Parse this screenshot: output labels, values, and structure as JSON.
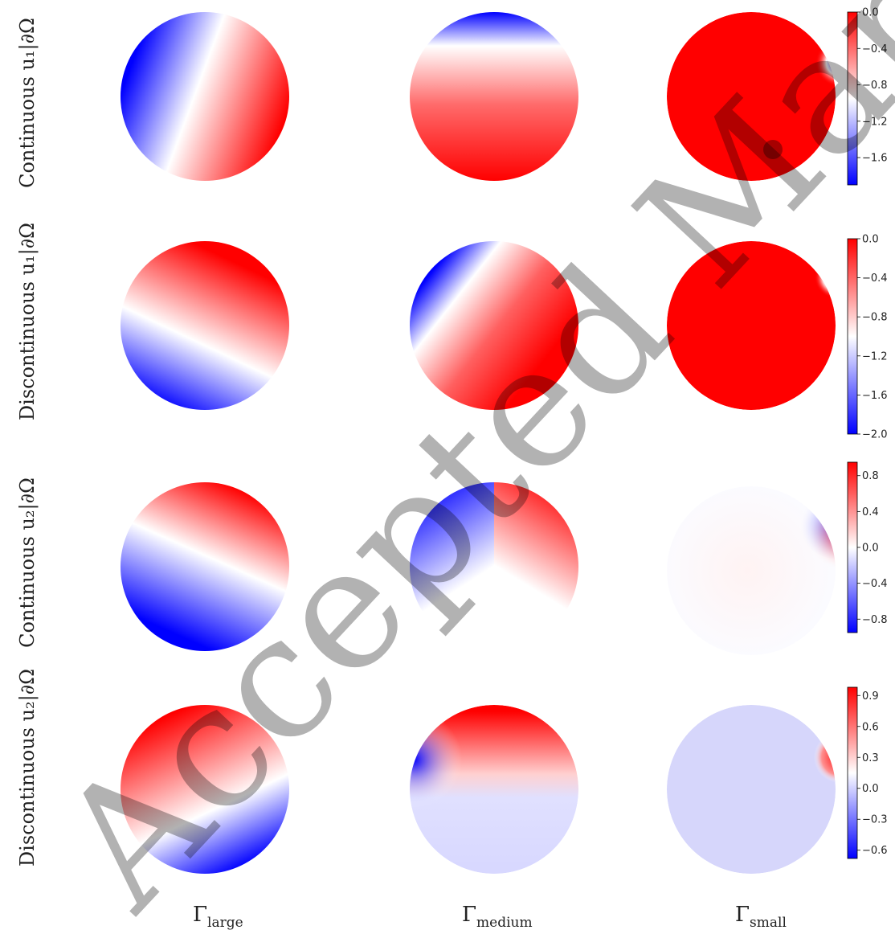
{
  "chart_data": {
    "type": "heatmap",
    "description_free": true,
    "columns": [
      {
        "base": "Γ",
        "sub": "large"
      },
      {
        "base": "Γ",
        "sub": "medium"
      },
      {
        "base": "Γ",
        "sub": "small"
      }
    ],
    "rows": [
      {
        "label": "Continuous u₁|∂Ω",
        "colorbar": {
          "ticks": [
            "0.0",
            "−0.4",
            "−0.8",
            "−1.2",
            "−1.6"
          ],
          "tick_values": [
            0.0,
            -0.4,
            -0.8,
            -1.2,
            -1.6
          ],
          "range": [
            -1.9,
            0.0
          ]
        },
        "panels": [
          {
            "kind": "angle",
            "angle_deg": 30,
            "blue_side": "left"
          },
          {
            "kind": "top_cap"
          },
          {
            "kind": "saturated_red",
            "blob": "top_right",
            "dark_dot": true
          }
        ]
      },
      {
        "label": "Discontinuous u₁|∂Ω",
        "colorbar": {
          "ticks": [
            "0.0",
            "−0.4",
            "−0.8",
            "−1.2",
            "−1.6",
            "−2.0"
          ],
          "tick_values": [
            0.0,
            -0.4,
            -0.8,
            -1.2,
            -1.6,
            -2.0
          ],
          "range": [
            -2.0,
            0.0
          ]
        },
        "panels": [
          {
            "kind": "fan_from_point",
            "point": "lower_right"
          },
          {
            "kind": "fan_from_point",
            "point": "left"
          },
          {
            "kind": "saturated_red",
            "blob": "top_right",
            "dark_dot": false
          }
        ]
      },
      {
        "label": "Continuous u₂|∂Ω",
        "colorbar": {
          "ticks": [
            "0.8",
            "0.4",
            "0.0",
            "−0.4",
            "−0.8"
          ],
          "tick_values": [
            0.8,
            0.4,
            0.0,
            -0.4,
            -0.8
          ],
          "range": [
            -0.95,
            0.95
          ]
        },
        "panels": [
          {
            "kind": "linear",
            "red_side": "top"
          },
          {
            "kind": "split_top",
            "left": "blue",
            "right": "red"
          },
          {
            "kind": "faint_pair",
            "blobs": "right"
          }
        ]
      },
      {
        "label": "Discontinuous u₂|∂Ω",
        "colorbar": {
          "ticks": [
            "0.9",
            "0.6",
            "0.3",
            "0.0",
            "−0.3",
            "−0.6"
          ],
          "tick_values": [
            0.9,
            0.6,
            0.3,
            0.0,
            -0.3,
            -0.6
          ],
          "range": [
            -0.68,
            0.98
          ]
        },
        "panels": [
          {
            "kind": "linear",
            "red_side": "top_left",
            "blue_corner": "bottom_right"
          },
          {
            "kind": "top_red_left_blue"
          },
          {
            "kind": "pale_blue",
            "blob": "right_red"
          }
        ]
      }
    ]
  },
  "watermark": "Accepted Manuscript",
  "colors": {
    "red": "#ff0000",
    "white": "#ffffff",
    "blue": "#0000ff"
  }
}
